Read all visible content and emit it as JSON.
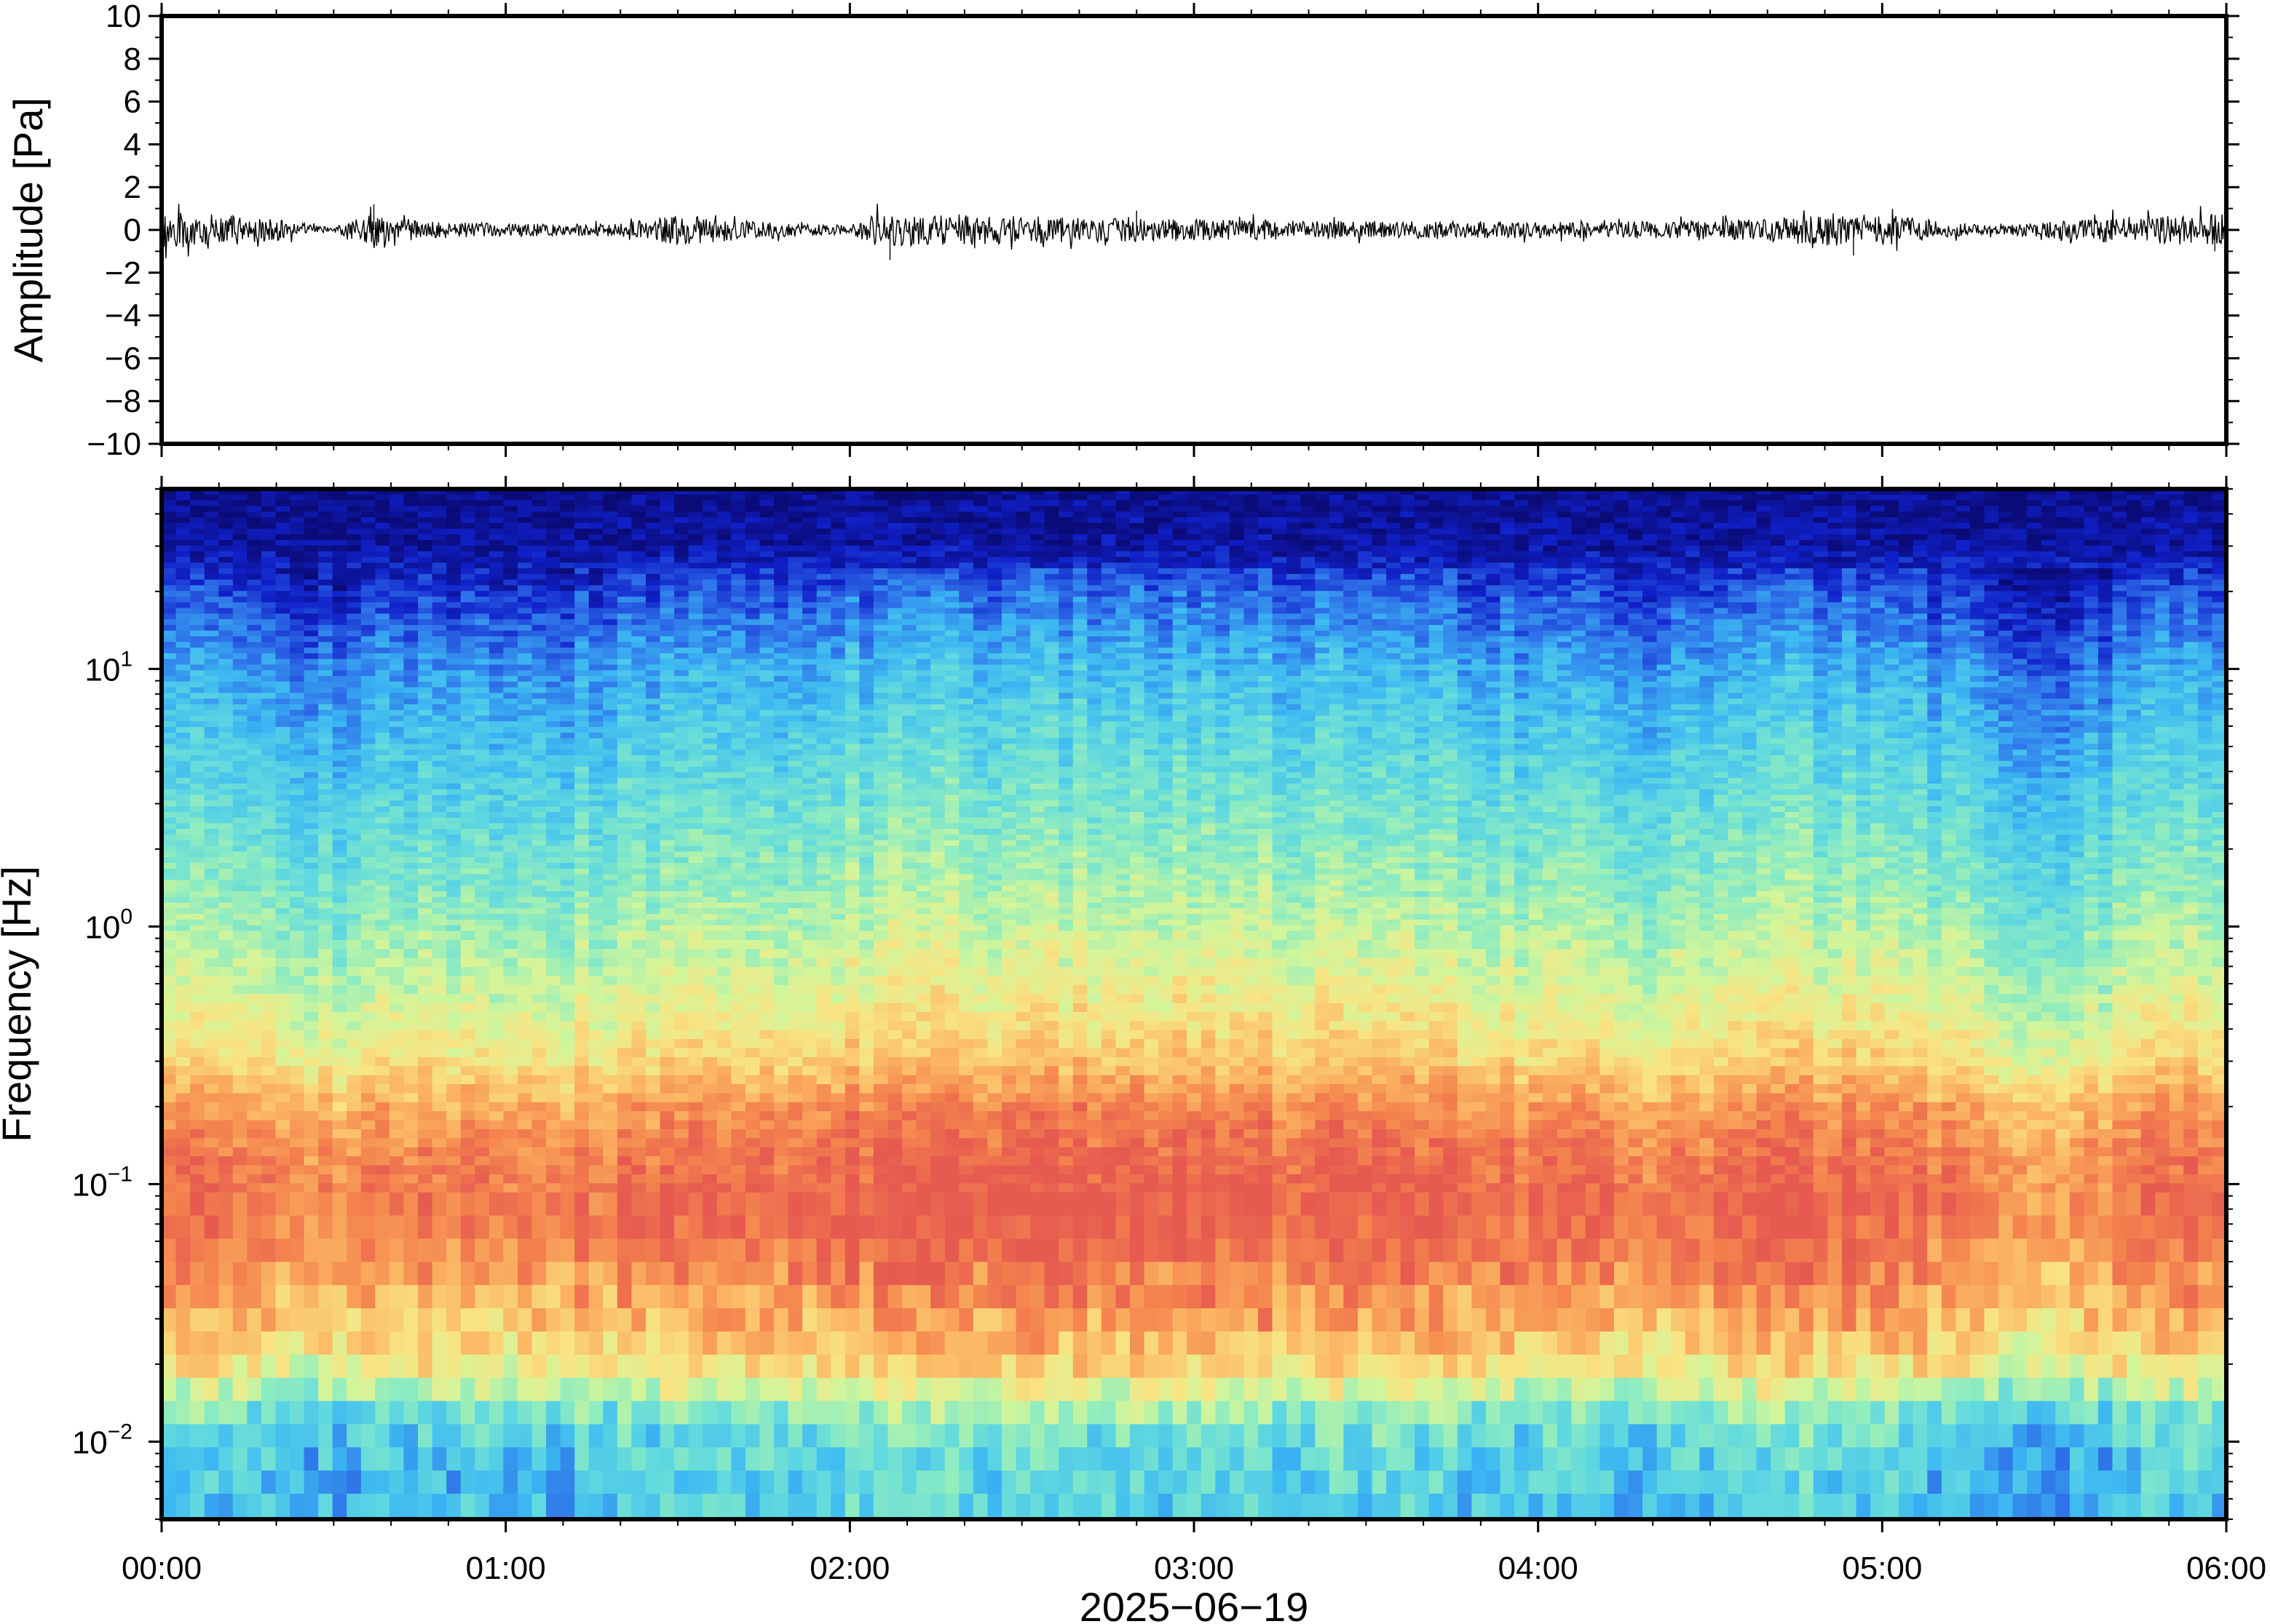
{
  "chart_data": [
    {
      "type": "line",
      "ylabel": "Amplitude [Pa]",
      "ylim": [
        -10,
        10
      ],
      "yticks": [
        {
          "value": 10,
          "label": "10"
        },
        {
          "value": 8,
          "label": "8"
        },
        {
          "value": 6,
          "label": "6"
        },
        {
          "value": 4,
          "label": "4"
        },
        {
          "value": 2,
          "label": "2"
        },
        {
          "value": 0,
          "label": "0"
        },
        {
          "value": -2,
          "label": "−2"
        },
        {
          "value": -4,
          "label": "−4"
        },
        {
          "value": -6,
          "label": "−6"
        },
        {
          "value": -8,
          "label": "−8"
        },
        {
          "value": -10,
          "label": "−10"
        }
      ],
      "xlim": [
        "2025-06-19 00:00",
        "2025-06-19 06:00"
      ],
      "series_color": "#000000",
      "envelope": {
        "x": [
          "00:00",
          "00:10",
          "00:20",
          "00:30",
          "00:37",
          "00:45",
          "01:00",
          "01:20",
          "01:30",
          "01:40",
          "02:00",
          "02:05",
          "02:15",
          "02:40",
          "03:00",
          "03:30",
          "04:00",
          "04:30",
          "04:45",
          "04:55",
          "05:10",
          "05:20",
          "05:40",
          "05:55",
          "06:00"
        ],
        "amplitude": [
          0.9,
          0.7,
          0.5,
          0.1,
          0.9,
          0.4,
          0.3,
          0.3,
          0.7,
          0.5,
          0.2,
          0.8,
          0.7,
          0.6,
          0.5,
          0.4,
          0.4,
          0.4,
          0.6,
          0.9,
          0.4,
          0.2,
          0.6,
          0.7,
          0.8
        ]
      },
      "spikes": [
        {
          "x": "00:37",
          "value": 1.2
        },
        {
          "x": "02:07",
          "value": -1.4
        },
        {
          "x": "02:50",
          "value": 0.9
        },
        {
          "x": "04:55",
          "value": -1.2
        },
        {
          "x": "05:58",
          "value": -1.0
        }
      ]
    },
    {
      "type": "heatmap",
      "ylabel": "Frequency [Hz]",
      "xlabel": "2025−06−19",
      "yscale": "log",
      "ylim": [
        0.005,
        50
      ],
      "yticks": [
        {
          "value": 10,
          "base": "10",
          "exp": "1"
        },
        {
          "value": 1,
          "base": "10",
          "exp": "0"
        },
        {
          "value": 0.1,
          "base": "10",
          "exp": "−1"
        },
        {
          "value": 0.01,
          "base": "10",
          "exp": "−2"
        }
      ],
      "xticks": [
        "00:00",
        "01:00",
        "02:00",
        "03:00",
        "04:00",
        "05:00",
        "06:00"
      ],
      "colormap": "jet",
      "colormap_stops": [
        "#0b0b78",
        "#1020c8",
        "#2e6ee8",
        "#3cb7f2",
        "#5fd8e0",
        "#8eecc0",
        "#d2f59a",
        "#f8e483",
        "#fbb764",
        "#f4844e",
        "#e65a50"
      ],
      "profile": {
        "frequency_hz": [
          0.005,
          0.008,
          0.012,
          0.015,
          0.02,
          0.03,
          0.05,
          0.08,
          0.12,
          0.2,
          0.3,
          0.5,
          1,
          2,
          5,
          10,
          20,
          30,
          50
        ],
        "level": [
          0.34,
          0.36,
          0.42,
          0.55,
          0.7,
          0.8,
          0.9,
          0.95,
          0.93,
          0.85,
          0.72,
          0.63,
          0.54,
          0.46,
          0.36,
          0.28,
          0.15,
          0.05,
          0.02
        ]
      },
      "column_offset": {
        "x": [
          "00:00",
          "00:10",
          "00:20",
          "00:30",
          "00:37",
          "00:45",
          "01:00",
          "01:15",
          "01:30",
          "01:45",
          "02:00",
          "02:15",
          "02:40",
          "03:00",
          "03:30",
          "04:00",
          "04:30",
          "04:45",
          "05:00",
          "05:15",
          "05:25",
          "05:35",
          "05:50",
          "06:00"
        ],
        "offset": [
          0.05,
          0.03,
          -0.05,
          -0.07,
          0.03,
          -0.02,
          -0.04,
          -0.02,
          0.03,
          0.0,
          0.04,
          0.06,
          0.05,
          0.05,
          0.03,
          0.0,
          -0.03,
          0.04,
          0.02,
          -0.03,
          -0.08,
          -0.07,
          0.02,
          0.04
        ]
      }
    }
  ]
}
